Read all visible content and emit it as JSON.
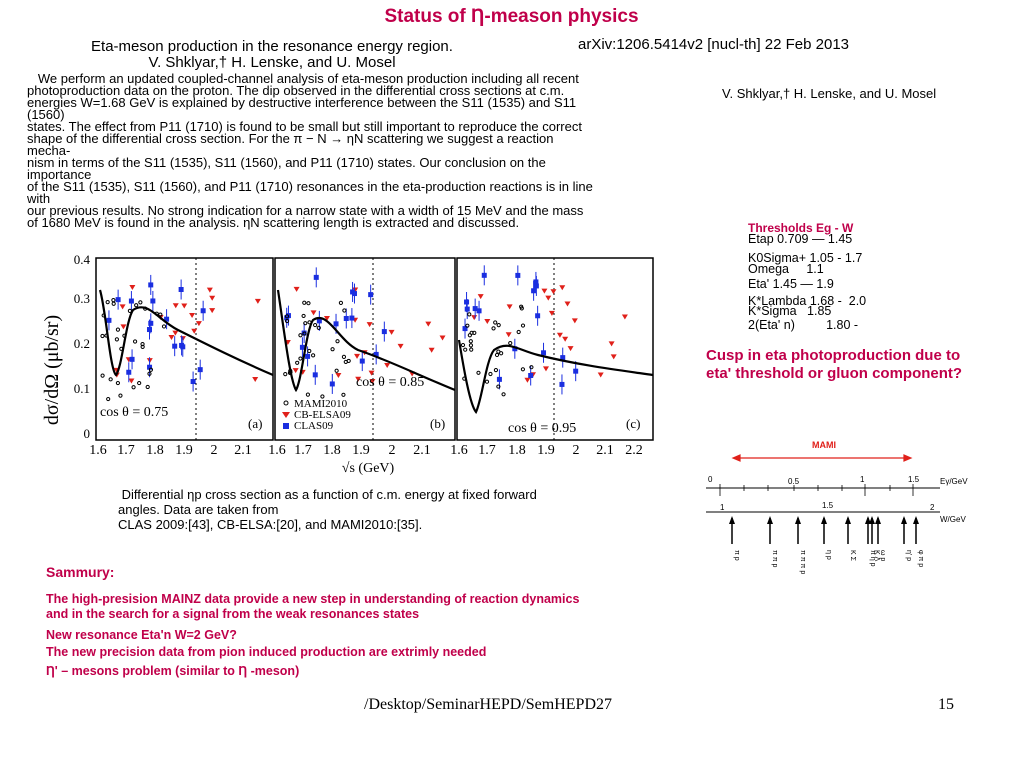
{
  "title": "Status of Ƞ-meason physics",
  "paper": {
    "arxiv": "arXiv:1206.5414v2 [nucl-th] 22 Feb 2013",
    "title_line": "Eta-meson production in the resonance energy region.",
    "authors": "V. Shklyar,† H. Lenske, and U. Mosel",
    "authors_right": "V. Shklyar,† H. Lenske, and U. Mosel",
    "abstract_lines": [
      "   We perform an updated coupled-channel analysis of eta-meson production including all recent",
      "photoproduction data on the proton. The dip observed in the differential cross sections at c.m.",
      "energies W=1.68 GeV is explained by destructive interference between the S11 (1535) and S11",
      "(1560)",
      "states. The effect from P11 (1710) is found to be small but still important to reproduce the correct",
      "shape of the differential cross section. For the π − N → ηN scattering we suggest a reaction",
      "mecha-",
      "nism in terms of the S11 (1535), S11 (1560), and P11 (1710) states. Our conclusion on the",
      "importance",
      "of the S11 (1535), S11 (1560), and P11 (1710) resonances in the eta-production reactions is in line",
      "with",
      "our previous results. No strong indication for a narrow state with a width of 15 MeV and the mass",
      "of 1680 MeV is found in the analysis. ηN scattering length is extracted and discussed."
    ]
  },
  "figure": {
    "y_axis_label": "dσ/dΩ (μb/sr)",
    "x_axis_label": "√s (GeV)",
    "y_ticks": [
      "0.4",
      "0.3",
      "0.2",
      "0.1",
      "0"
    ],
    "x_ticks": [
      "1.6",
      "1.7",
      "1.8",
      "1.9",
      "2",
      "2.1",
      "1.6",
      "1.7",
      "1.8",
      "1.9",
      "2",
      "2.1",
      "1.6",
      "1.7",
      "1.8",
      "1.9",
      "2",
      "2.1",
      "2.2"
    ],
    "panels": [
      {
        "cos": "cos θ = 0.75",
        "tag": "(a)"
      },
      {
        "cos": "cos θ = 0.85",
        "tag": "(b)"
      },
      {
        "cos": "cos θ = 0.95",
        "tag": "(c)"
      }
    ],
    "legend": [
      "MAMI2010",
      "CB-ELSA09",
      "CLAS09"
    ],
    "colors": {
      "mami": "#000000",
      "elsa": "#e0201a",
      "clas": "#1a2ee0",
      "fit": "#000000"
    }
  },
  "caption": {
    "line1": " Differential ηp cross section as a function of c.m. energy at fixed forward",
    "line2": "angles. Data are taken from",
    "line3": "CLAS 2009:[43], CB-ELSA:[20], and MAMI2010:[35]."
  },
  "thresholds": {
    "heading": "Thresholds Eg - W",
    "items": [
      "Etap 0.709 — 1.45",
      "K0Sigma+ 1.05 - 1.7",
      "Omega     1.1",
      "Eta' 1.45 — 1.9",
      "K*Lambda 1.68 -  2.0",
      "K*Sigma   1.85",
      "2(Eta' n)         1.80 -"
    ]
  },
  "cusp": "Cusp in eta photoproduction due to eta' threshold or gluon component?",
  "mami_diagram": {
    "label": "MAMI",
    "top_ticks": [
      "0",
      "0.5",
      "1",
      "1.5"
    ],
    "top_unit": "Eγ/GeV",
    "bottom_ticks": [
      "1",
      "1.5",
      "2"
    ],
    "bottom_unit": "W/GeV",
    "channels": [
      "π p",
      "π π p",
      "π π π p",
      "η p",
      "K Σ",
      "π η p",
      "K Λ",
      "ω p",
      "η' p",
      "φ π p"
    ]
  },
  "summary": {
    "heading": "Sammury:",
    "line1": "The high-presision MAINZ data provide a new step in understanding  of reaction dynamics",
    "line2": "and in the search for a signal from the weak  resonances states",
    "line3": "New resonance Eta'n W=2 GeV?",
    "line4": "The new precision data from pion induced production are extrimly needed",
    "line5": "Ƞ' – mesons problem (similar to Ƞ -meson)"
  },
  "footer": {
    "path": "/Desktop/SeminarHEPD/SemHEPD27",
    "page": "15"
  }
}
